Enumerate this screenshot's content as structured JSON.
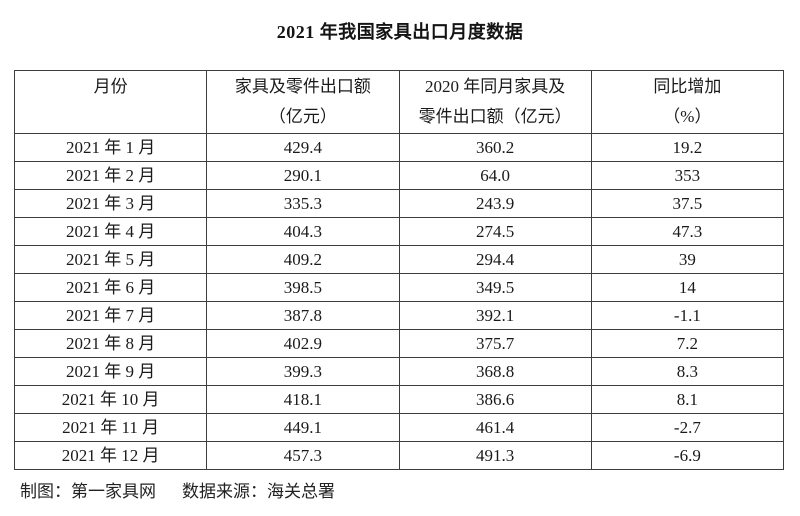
{
  "page": {
    "title": "2021 年我国家具出口月度数据"
  },
  "table": {
    "headers": [
      {
        "line1": "月份",
        "line2": ""
      },
      {
        "line1": "家具及零件出口额",
        "line2": "（亿元）"
      },
      {
        "line1": "2020 年同月家具及",
        "line2": "零件出口额（亿元）"
      },
      {
        "line1": "同比增加",
        "line2": "（%）"
      }
    ],
    "rows": [
      [
        "2021 年 1 月",
        "429.4",
        "360.2",
        "19.2"
      ],
      [
        "2021 年 2 月",
        "290.1",
        "64.0",
        "353"
      ],
      [
        "2021 年 3 月",
        "335.3",
        "243.9",
        "37.5"
      ],
      [
        "2021 年 4 月",
        "404.3",
        "274.5",
        "47.3"
      ],
      [
        "2021 年 5 月",
        "409.2",
        "294.4",
        "39"
      ],
      [
        "2021 年 6 月",
        "398.5",
        "349.5",
        "14"
      ],
      [
        "2021 年 7 月",
        "387.8",
        "392.1",
        "-1.1"
      ],
      [
        "2021 年 8 月",
        "402.9",
        "375.7",
        "7.2"
      ],
      [
        "2021 年 9 月",
        "399.3",
        "368.8",
        "8.3"
      ],
      [
        "2021 年 10 月",
        "418.1",
        "386.6",
        "8.1"
      ],
      [
        "2021 年 11 月",
        "449.1",
        "461.4",
        "-2.7"
      ],
      [
        "2021 年 12 月",
        "457.3",
        "491.3",
        "-6.9"
      ]
    ]
  },
  "footer": {
    "credit": "制图：第一家具网",
    "source": "数据来源：海关总署"
  },
  "colors": {
    "background": "#ffffff",
    "text": "#1a1a1a",
    "border": "#3d3d3d"
  },
  "chart_data": {
    "type": "table",
    "title": "2021 年我国家具出口月度数据",
    "columns": [
      "月份",
      "家具及零件出口额（亿元）",
      "2020 年同月家具及零件出口额（亿元）",
      "同比增加（%）"
    ],
    "rows": [
      [
        "2021 年 1 月",
        429.4,
        360.2,
        19.2
      ],
      [
        "2021 年 2 月",
        290.1,
        64.0,
        353
      ],
      [
        "2021 年 3 月",
        335.3,
        243.9,
        37.5
      ],
      [
        "2021 年 4 月",
        404.3,
        274.5,
        47.3
      ],
      [
        "2021 年 5 月",
        409.2,
        294.4,
        39
      ],
      [
        "2021 年 6 月",
        398.5,
        349.5,
        14
      ],
      [
        "2021 年 7 月",
        387.8,
        392.1,
        -1.1
      ],
      [
        "2021 年 8 月",
        402.9,
        375.7,
        7.2
      ],
      [
        "2021 年 9 月",
        399.3,
        368.8,
        8.3
      ],
      [
        "2021 年 10 月",
        418.1,
        386.6,
        8.1
      ],
      [
        "2021 年 11 月",
        449.1,
        461.4,
        -2.7
      ],
      [
        "2021 年 12 月",
        457.3,
        491.3,
        -6.9
      ]
    ],
    "credit": "制图：第一家具网",
    "source": "数据来源：海关总署"
  }
}
